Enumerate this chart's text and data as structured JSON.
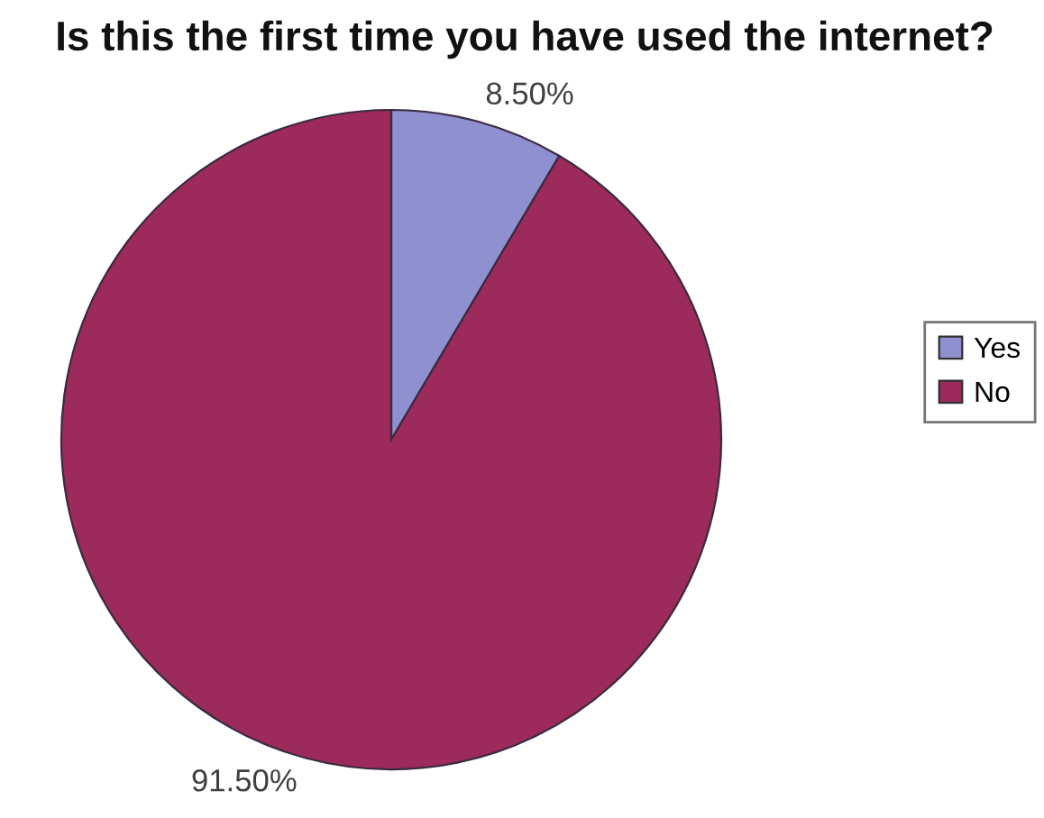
{
  "chart_data": {
    "type": "pie",
    "title": "Is this the first time you have used the internet?",
    "categories": [
      "Yes",
      "No"
    ],
    "values": [
      8.5,
      91.5
    ],
    "colors": [
      "#8e90d0",
      "#9c2b5c"
    ],
    "value_labels": [
      "8.50%",
      "91.50%"
    ],
    "legend": "right"
  }
}
